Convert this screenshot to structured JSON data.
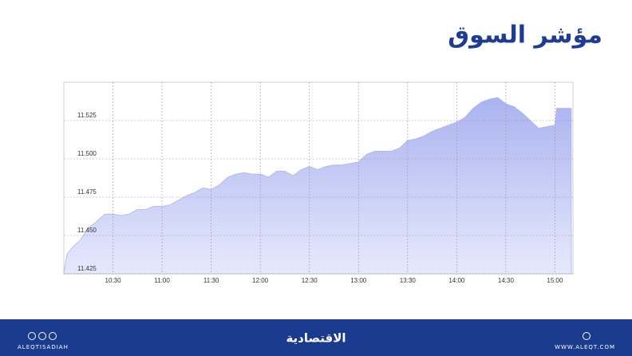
{
  "chart_data": {
    "type": "area",
    "title": "مؤشر السوق",
    "x": [
      "10:00",
      "10:02",
      "10:05",
      "10:10",
      "10:15",
      "10:20",
      "10:25",
      "10:30",
      "10:35",
      "10:40",
      "10:45",
      "10:50",
      "10:55",
      "11:00",
      "11:05",
      "11:10",
      "11:15",
      "11:20",
      "11:25",
      "11:30",
      "11:35",
      "11:40",
      "11:45",
      "11:50",
      "11:55",
      "12:00",
      "12:05",
      "12:10",
      "12:15",
      "12:20",
      "12:25",
      "12:30",
      "12:35",
      "12:40",
      "12:45",
      "12:50",
      "12:55",
      "13:00",
      "13:05",
      "13:10",
      "13:15",
      "13:20",
      "13:25",
      "13:30",
      "13:35",
      "13:40",
      "13:45",
      "13:50",
      "13:55",
      "14:00",
      "14:05",
      "14:10",
      "14:15",
      "14:20",
      "14:25",
      "14:30",
      "14:35",
      "14:40",
      "14:45",
      "14:50",
      "14:55",
      "15:00",
      "15:01",
      "15:10"
    ],
    "series": [
      {
        "name": "مؤشر السوق",
        "color": "#aab3f0",
        "values": [
          11.426,
          11.438,
          11.442,
          11.447,
          11.455,
          11.459,
          11.464,
          11.464,
          11.463,
          11.464,
          11.467,
          11.467,
          11.469,
          11.469,
          11.47,
          11.473,
          11.476,
          11.478,
          11.481,
          11.48,
          11.483,
          11.488,
          11.49,
          11.491,
          11.49,
          11.49,
          11.488,
          11.492,
          11.492,
          11.489,
          11.493,
          11.495,
          11.493,
          11.495,
          11.496,
          11.496,
          11.497,
          11.498,
          11.503,
          11.505,
          11.505,
          11.505,
          11.507,
          11.512,
          11.513,
          11.515,
          11.518,
          11.52,
          11.522,
          11.524,
          11.527,
          11.533,
          11.537,
          11.539,
          11.54,
          11.536,
          11.534,
          11.53,
          11.525,
          11.52,
          11.521,
          11.522,
          11.533,
          11.533
        ]
      }
    ],
    "xlim": [
      "10:00",
      "15:11"
    ],
    "xticks": [
      "10:30",
      "11:00",
      "11:30",
      "12:00",
      "12:30",
      "13:00",
      "13:30",
      "14:00",
      "14:30",
      "15:00"
    ],
    "ylim": [
      11.425,
      11.55
    ],
    "yticks": [
      11.425,
      {
        "value": 11.45,
        "label": "11.450"
      },
      11.475,
      {
        "value": 11.5,
        "label": "11.500"
      },
      11.525
    ],
    "grid": true
  },
  "footer": {
    "handle": "ALEQTISADIAH",
    "brand": "الاقتصادية",
    "website": "WWW.ALEQT.COM"
  }
}
